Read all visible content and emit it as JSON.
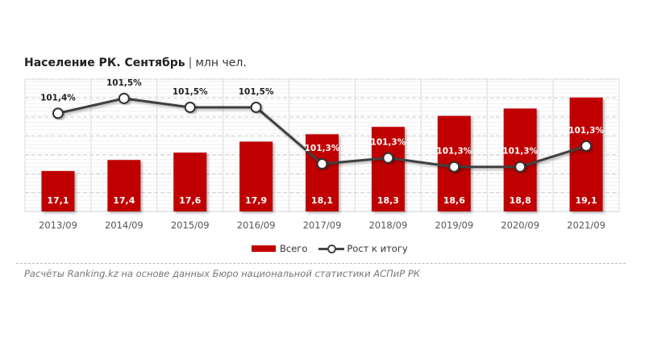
{
  "chart_data": {
    "type": "bar+line",
    "title": "Население РК. Сентябрь",
    "unit": "млн чел.",
    "categories": [
      "2013/09",
      "2014/09",
      "2015/09",
      "2016/09",
      "2017/09",
      "2018/09",
      "2019/09",
      "2020/09",
      "2021/09"
    ],
    "series": [
      {
        "name": "Всего",
        "type": "bar",
        "color": "#c00000",
        "values": [
          17.1,
          17.4,
          17.6,
          17.9,
          18.1,
          18.3,
          18.6,
          18.8,
          19.1
        ],
        "labels": [
          "17,1",
          "17,4",
          "17,6",
          "17,9",
          "18,1",
          "18,3",
          "18,6",
          "18,8",
          "19,1"
        ]
      },
      {
        "name": "Рост к итогу",
        "type": "line",
        "color": "#404040",
        "axis": "secondary",
        "values": [
          101.45,
          101.5,
          101.47,
          101.47,
          101.28,
          101.3,
          101.27,
          101.27,
          101.34
        ],
        "labels": [
          "101,4%",
          "101,5%",
          "101,5%",
          "101,5%",
          "101,3%",
          "101,3%",
          "101,3%",
          "101,3%",
          "101,3%"
        ]
      }
    ],
    "ylim": [
      16,
      19.6
    ],
    "y2lim": [
      101.12,
      101.565
    ],
    "grid": true,
    "legend_position": "bottom"
  },
  "source": "Расчёты Ranking.kz на основе данных Бюро национальной статистики АСПиР РК"
}
